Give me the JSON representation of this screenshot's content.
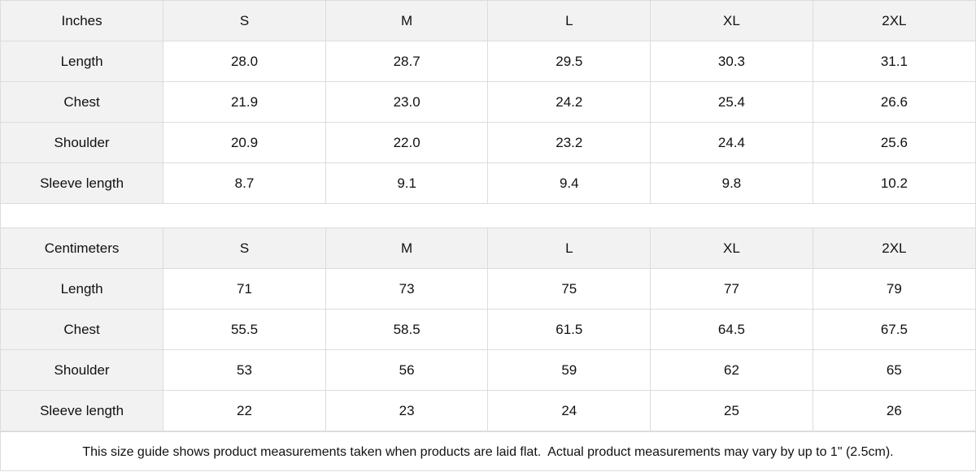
{
  "tables": [
    {
      "unit": "Inches",
      "sizes": [
        "S",
        "M",
        "L",
        "XL",
        "2XL"
      ],
      "rows": [
        {
          "label": "Length",
          "values": [
            "28.0",
            "28.7",
            "29.5",
            "30.3",
            "31.1"
          ]
        },
        {
          "label": "Chest",
          "values": [
            "21.9",
            "23.0",
            "24.2",
            "25.4",
            "26.6"
          ]
        },
        {
          "label": "Shoulder",
          "values": [
            "20.9",
            "22.0",
            "23.2",
            "24.4",
            "25.6"
          ]
        },
        {
          "label": "Sleeve length",
          "values": [
            "8.7",
            "9.1",
            "9.4",
            "9.8",
            "10.2"
          ]
        }
      ]
    },
    {
      "unit": "Centimeters",
      "sizes": [
        "S",
        "M",
        "L",
        "XL",
        "2XL"
      ],
      "rows": [
        {
          "label": "Length",
          "values": [
            "71",
            "73",
            "75",
            "77",
            "79"
          ]
        },
        {
          "label": "Chest",
          "values": [
            "55.5",
            "58.5",
            "61.5",
            "64.5",
            "67.5"
          ]
        },
        {
          "label": "Shoulder",
          "values": [
            "53",
            "56",
            "59",
            "62",
            "65"
          ]
        },
        {
          "label": "Sleeve length",
          "values": [
            "22",
            "23",
            "24",
            "25",
            "26"
          ]
        }
      ]
    }
  ],
  "note": "This size guide shows product measurements taken when products are laid flat.  Actual product measurements may vary by up to 1\" (2.5cm)."
}
